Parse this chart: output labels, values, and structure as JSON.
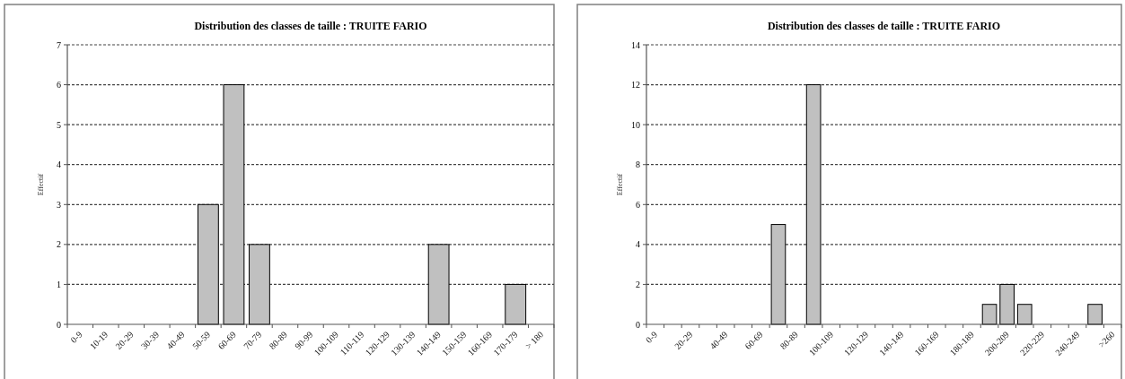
{
  "chart_data": [
    {
      "type": "bar",
      "title": "Distribution des classes de taille : TRUITE FARIO",
      "ylabel": "Effectif",
      "categories": [
        "0-9",
        "10-19",
        "20-29",
        "30-39",
        "40-49",
        "50-59",
        "60-69",
        "70-79",
        "80-89",
        "90-99",
        "100-109",
        "110-119",
        "120-129",
        "130-139",
        "140-149",
        "150-159",
        "160-169",
        "170-179",
        "> 180"
      ],
      "values": [
        0,
        0,
        0,
        0,
        0,
        3,
        6,
        2,
        0,
        0,
        0,
        0,
        0,
        0,
        2,
        0,
        0,
        1,
        0
      ],
      "color": "#c0c0c0",
      "ylim": [
        0,
        7
      ],
      "yticks": [
        0,
        1,
        2,
        3,
        4,
        5,
        6,
        7
      ],
      "grid": "y"
    },
    {
      "type": "bar",
      "title": "Distribution des classes de taille : TRUITE FARIO",
      "ylabel": "Effectif",
      "categories": [
        "0-9",
        null,
        "20-29",
        null,
        "40-49",
        null,
        "60-69",
        null,
        "80-89",
        null,
        "100-109",
        null,
        "120-129",
        null,
        "140-149",
        null,
        "160-169",
        null,
        "180-189",
        null,
        "200-209",
        null,
        "220-229",
        null,
        "240-249",
        null,
        ">260"
      ],
      "values": [
        0,
        0,
        0,
        0,
        0,
        0,
        0,
        5,
        0,
        12,
        0,
        0,
        0,
        0,
        0,
        0,
        0,
        0,
        0,
        1,
        2,
        1,
        0,
        0,
        0,
        1,
        0
      ],
      "color": "#c0c0c0",
      "ylim": [
        0,
        14
      ],
      "yticks": [
        0,
        2,
        4,
        6,
        8,
        10,
        12,
        14
      ],
      "grid": "y"
    }
  ]
}
